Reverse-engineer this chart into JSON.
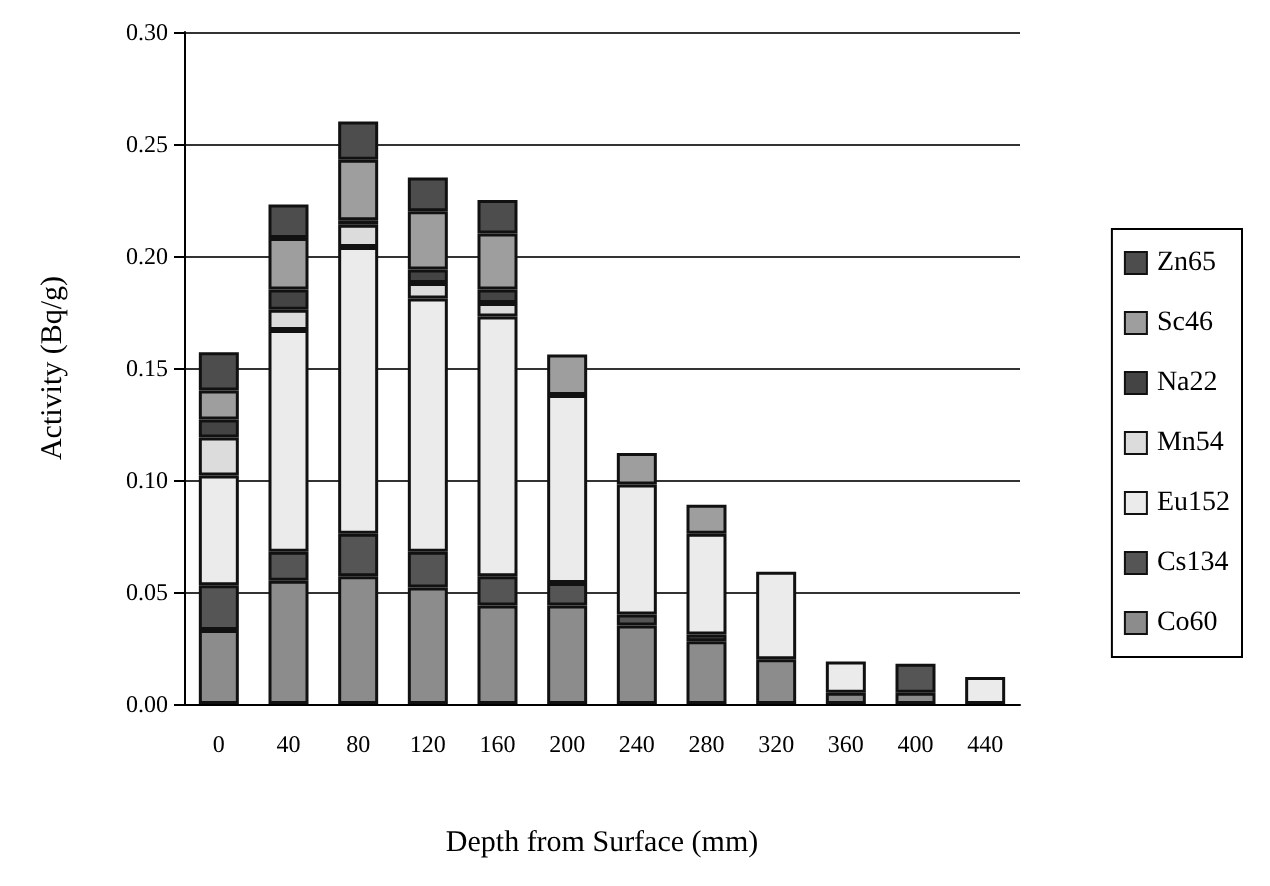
{
  "chart_data": {
    "type": "bar",
    "stacked": true,
    "xlabel": "Depth from Surface (mm)",
    "ylabel": "Activity (Bq/g)",
    "categories": [
      "0",
      "40",
      "80",
      "120",
      "160",
      "200",
      "240",
      "280",
      "320",
      "360",
      "400",
      "440"
    ],
    "series": [
      {
        "name": "Co60",
        "color": "#8c8c8c",
        "values": [
          0.033,
          0.055,
          0.057,
          0.052,
          0.044,
          0.044,
          0.035,
          0.028,
          0.02,
          0.005,
          0.005,
          null
        ]
      },
      {
        "name": "Cs134",
        "color": "#555555",
        "values": [
          0.02,
          0.013,
          0.019,
          0.016,
          0.013,
          0.01,
          0.005,
          0.003,
          null,
          null,
          0.013,
          null
        ]
      },
      {
        "name": "Eu152",
        "color": "#ebebeb",
        "values": [
          0.049,
          0.099,
          0.128,
          0.113,
          0.116,
          0.084,
          0.058,
          0.045,
          0.039,
          0.014,
          null,
          0.012
        ]
      },
      {
        "name": "Mn54",
        "color": "#dcdcdc",
        "values": [
          0.017,
          0.009,
          0.01,
          0.007,
          0.006,
          null,
          null,
          null,
          null,
          null,
          null,
          null
        ]
      },
      {
        "name": "Na22",
        "color": "#444444",
        "values": [
          0.008,
          0.009,
          0.002,
          0.006,
          0.006,
          null,
          null,
          null,
          null,
          null,
          null,
          null
        ]
      },
      {
        "name": "Sc46",
        "color": "#9e9e9e",
        "values": [
          0.013,
          0.023,
          0.027,
          0.026,
          0.025,
          0.018,
          0.014,
          0.013,
          null,
          null,
          null,
          null
        ]
      },
      {
        "name": "Zn65",
        "color": "#4d4d4d",
        "values": [
          0.017,
          0.015,
          0.017,
          0.015,
          0.015,
          null,
          null,
          null,
          null,
          null,
          null,
          null
        ]
      }
    ],
    "ylim": [
      0,
      0.3
    ],
    "yticks": [
      {
        "value": 0,
        "label": "0.00"
      },
      {
        "value": 0.05,
        "label": "0.05"
      },
      {
        "value": 0.1,
        "label": "0.10"
      },
      {
        "value": 0.15,
        "label": "0.15"
      },
      {
        "value": 0.2,
        "label": "0.20"
      },
      {
        "value": 0.25,
        "label": "0.25"
      },
      {
        "value": 0.3,
        "label": "0.30"
      }
    ],
    "grid": "y",
    "legend": "right"
  }
}
